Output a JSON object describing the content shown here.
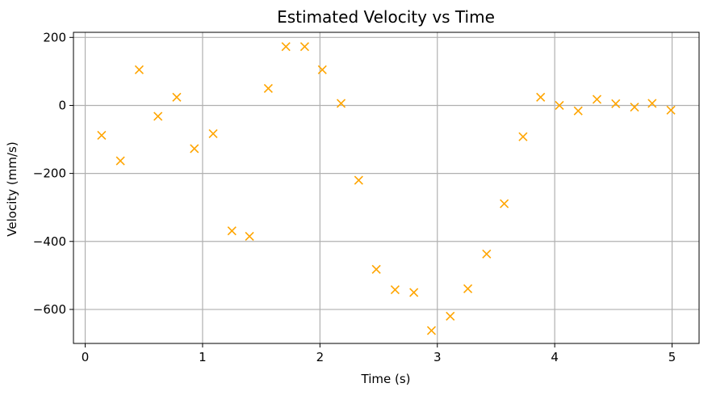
{
  "chart_data": {
    "type": "scatter",
    "title": "Estimated Velocity vs Time",
    "xlabel": "Time (s)",
    "ylabel": "Velocity (mm/s)",
    "xlim": [
      -0.1,
      5.23
    ],
    "ylim": [
      -700,
      215
    ],
    "xticks": [
      0,
      1,
      2,
      3,
      4,
      5
    ],
    "xtick_labels": [
      "0",
      "1",
      "2",
      "3",
      "4",
      "5"
    ],
    "yticks": [
      200,
      0,
      -200,
      -400,
      -600
    ],
    "ytick_labels": [
      "200",
      "0",
      "−200",
      "−400",
      "−600"
    ],
    "grid": true,
    "marker": "x",
    "color": "#ffa500",
    "series": [
      {
        "x": [
          0.14,
          0.3,
          0.46,
          0.62,
          0.78,
          0.93,
          1.09,
          1.25,
          1.4,
          1.56,
          1.71,
          1.87,
          2.02,
          2.18,
          2.33,
          2.48,
          2.64,
          2.8,
          2.95,
          3.11,
          3.26,
          3.42,
          3.57,
          3.73,
          3.88,
          4.04,
          4.2,
          4.36,
          4.52,
          4.68,
          4.83,
          4.99
        ],
        "y": [
          -88,
          -163,
          105,
          -32,
          24,
          -127,
          -83,
          -369,
          -385,
          50,
          173,
          173,
          105,
          6,
          -220,
          -482,
          -542,
          -550,
          -662,
          -620,
          -539,
          -437,
          -289,
          -92,
          24,
          0,
          -16,
          18,
          5,
          -5,
          6,
          -14
        ]
      }
    ]
  }
}
